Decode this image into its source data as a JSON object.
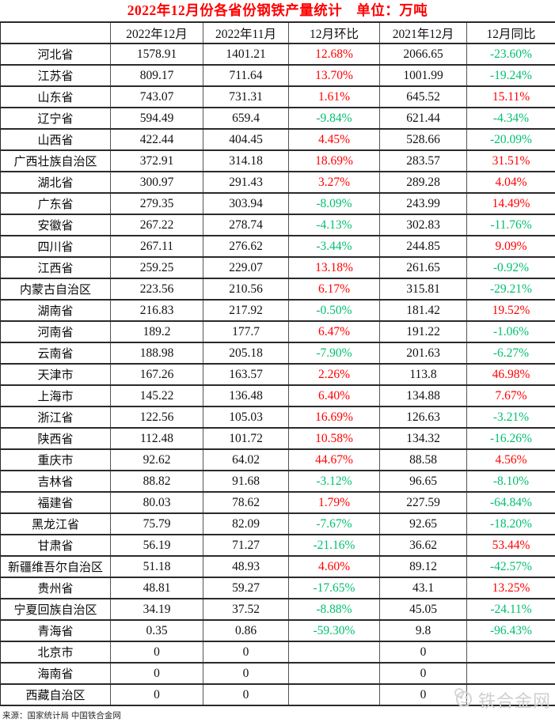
{
  "title": "2022年12月份各省份钢铁产量统计　单位：万吨",
  "chart_data": {
    "type": "table",
    "title": "2022年12月份各省份钢铁产量统计",
    "unit": "万吨",
    "columns": [
      "",
      "2022年12月",
      "2022年11月",
      "12月环比",
      "2021年12月",
      "12月同比"
    ],
    "rows": [
      [
        "河北省",
        "1578.91",
        "1401.21",
        "12.68%",
        "2066.65",
        "-23.60%"
      ],
      [
        "江苏省",
        "809.17",
        "711.64",
        "13.70%",
        "1001.99",
        "-19.24%"
      ],
      [
        "山东省",
        "743.07",
        "731.31",
        "1.61%",
        "645.52",
        "15.11%"
      ],
      [
        "辽宁省",
        "594.49",
        "659.4",
        "-9.84%",
        "621.44",
        "-4.34%"
      ],
      [
        "山西省",
        "422.44",
        "404.45",
        "4.45%",
        "528.66",
        "-20.09%"
      ],
      [
        "广西壮族自治区",
        "372.91",
        "314.18",
        "18.69%",
        "283.57",
        "31.51%"
      ],
      [
        "湖北省",
        "300.97",
        "291.43",
        "3.27%",
        "289.28",
        "4.04%"
      ],
      [
        "广东省",
        "279.35",
        "303.94",
        "-8.09%",
        "243.99",
        "14.49%"
      ],
      [
        "安徽省",
        "267.22",
        "278.74",
        "-4.13%",
        "302.83",
        "-11.76%"
      ],
      [
        "四川省",
        "267.11",
        "276.62",
        "-3.44%",
        "244.85",
        "9.09%"
      ],
      [
        "江西省",
        "259.25",
        "229.07",
        "13.18%",
        "261.65",
        "-0.92%"
      ],
      [
        "内蒙古自治区",
        "223.56",
        "210.56",
        "6.17%",
        "315.81",
        "-29.21%"
      ],
      [
        "湖南省",
        "216.83",
        "217.92",
        "-0.50%",
        "181.42",
        "19.52%"
      ],
      [
        "河南省",
        "189.2",
        "177.7",
        "6.47%",
        "191.22",
        "-1.06%"
      ],
      [
        "云南省",
        "188.98",
        "205.18",
        "-7.90%",
        "201.63",
        "-6.27%"
      ],
      [
        "天津市",
        "167.26",
        "163.57",
        "2.26%",
        "113.8",
        "46.98%"
      ],
      [
        "上海市",
        "145.22",
        "136.48",
        "6.40%",
        "134.88",
        "7.67%"
      ],
      [
        "浙江省",
        "122.56",
        "105.03",
        "16.69%",
        "126.63",
        "-3.21%"
      ],
      [
        "陕西省",
        "112.48",
        "101.72",
        "10.58%",
        "134.32",
        "-16.26%"
      ],
      [
        "重庆市",
        "92.62",
        "64.02",
        "44.67%",
        "88.58",
        "4.56%"
      ],
      [
        "吉林省",
        "88.82",
        "91.68",
        "-3.12%",
        "96.65",
        "-8.10%"
      ],
      [
        "福建省",
        "80.03",
        "78.62",
        "1.79%",
        "227.59",
        "-64.84%"
      ],
      [
        "黑龙江省",
        "75.79",
        "82.09",
        "-7.67%",
        "92.65",
        "-18.20%"
      ],
      [
        "甘肃省",
        "56.19",
        "71.27",
        "-21.16%",
        "36.62",
        "53.44%"
      ],
      [
        "新疆维吾尔自治区",
        "51.18",
        "48.93",
        "4.60%",
        "89.12",
        "-42.57%"
      ],
      [
        "贵州省",
        "48.81",
        "59.27",
        "-17.65%",
        "43.1",
        "13.25%"
      ],
      [
        "宁夏回族自治区",
        "34.19",
        "37.52",
        "-8.88%",
        "45.05",
        "-24.11%"
      ],
      [
        "青海省",
        "0.35",
        "0.86",
        "-59.30%",
        "9.8",
        "-96.43%"
      ],
      [
        "北京市",
        "0",
        "0",
        "",
        "0",
        ""
      ],
      [
        "海南省",
        "0",
        "0",
        "",
        "0",
        ""
      ],
      [
        "西藏自治区",
        "0",
        "0",
        "",
        "0",
        ""
      ]
    ]
  },
  "footer": {
    "source": "来源：国家统计局 中国铁合金网"
  },
  "watermark": {
    "text": "铁合金网"
  },
  "colors": {
    "title_red": "#ff0000",
    "increase_red": "#ff0000",
    "decrease_green": "#00bf70",
    "watermark_gray": "#cfcfcf",
    "border_dark": "#2a2a2a"
  }
}
